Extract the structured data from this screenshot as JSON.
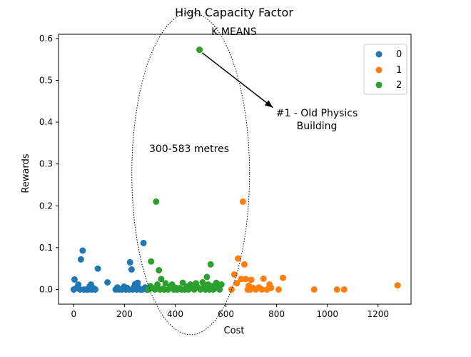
{
  "page": {
    "title": "High Capacity Factor",
    "subtitle": "K MEANS"
  },
  "chart_data": {
    "type": "scatter",
    "title": "High Capacity Factor",
    "subtitle": "K MEANS",
    "xlabel": "Cost",
    "ylabel": "Rewards",
    "xlim": [
      -60,
      1330
    ],
    "ylim": [
      -0.035,
      0.61
    ],
    "xticks": [
      0,
      200,
      400,
      600,
      800,
      1000,
      1200
    ],
    "yticks": [
      0.0,
      0.1,
      0.2,
      0.3,
      0.4,
      0.5,
      0.6
    ],
    "xtick_labels": [
      "0",
      "200",
      "400",
      "600",
      "800",
      "1000",
      "1200"
    ],
    "ytick_labels": [
      "0.0",
      "0.1",
      "0.2",
      "0.3",
      "0.4",
      "0.5",
      "0.6"
    ],
    "grid": false,
    "legend_position": "top-right",
    "series": [
      {
        "name": "0",
        "color": "#1f77b4",
        "points": [
          [
            0,
            0.0
          ],
          [
            3,
            0.024
          ],
          [
            10,
            0.003
          ],
          [
            18,
            0.012
          ],
          [
            25,
            0.0
          ],
          [
            28,
            0.072
          ],
          [
            35,
            0.093
          ],
          [
            40,
            0.0
          ],
          [
            50,
            0.0
          ],
          [
            58,
            0.0
          ],
          [
            62,
            0.007
          ],
          [
            68,
            0.012
          ],
          [
            72,
            0.0
          ],
          [
            78,
            0.003
          ],
          [
            85,
            0.0
          ],
          [
            95,
            0.05
          ],
          [
            133,
            0.017
          ],
          [
            165,
            0.0
          ],
          [
            172,
            0.005
          ],
          [
            178,
            0.0
          ],
          [
            190,
            0.0
          ],
          [
            198,
            0.007
          ],
          [
            205,
            0.0
          ],
          [
            210,
            0.004
          ],
          [
            218,
            0.0
          ],
          [
            222,
            0.065
          ],
          [
            228,
            0.048
          ],
          [
            232,
            0.0
          ],
          [
            238,
            0.006
          ],
          [
            242,
            0.013
          ],
          [
            248,
            0.0
          ],
          [
            252,
            0.016
          ],
          [
            258,
            0.003
          ],
          [
            262,
            0.0
          ],
          [
            270,
            0.0
          ],
          [
            275,
            0.111
          ],
          [
            282,
            0.005
          ],
          [
            288,
            0.0
          ]
        ]
      },
      {
        "name": "1",
        "color": "#ff7f0e",
        "points": [
          [
            622,
            0.0
          ],
          [
            633,
            0.036
          ],
          [
            643,
            0.015
          ],
          [
            648,
            0.074
          ],
          [
            660,
            0.025
          ],
          [
            667,
            0.21
          ],
          [
            673,
            0.06
          ],
          [
            678,
            0.025
          ],
          [
            686,
            0.0
          ],
          [
            690,
            0.009
          ],
          [
            696,
            0.0
          ],
          [
            700,
            0.023
          ],
          [
            706,
            0.004
          ],
          [
            718,
            0.0
          ],
          [
            730,
            0.005
          ],
          [
            742,
            0.0
          ],
          [
            748,
            0.026
          ],
          [
            762,
            0.0
          ],
          [
            772,
            0.012
          ],
          [
            778,
            0.004
          ],
          [
            808,
            0.0
          ],
          [
            825,
            0.028
          ],
          [
            948,
            0.0
          ],
          [
            1038,
            0.0
          ],
          [
            1066,
            0.0
          ],
          [
            1277,
            0.01
          ]
        ]
      },
      {
        "name": "2",
        "color": "#2ca02c",
        "points": [
          [
            295,
            0.0
          ],
          [
            302,
            0.008
          ],
          [
            305,
            0.067
          ],
          [
            312,
            0.003
          ],
          [
            320,
            0.0
          ],
          [
            325,
            0.21
          ],
          [
            330,
            0.012
          ],
          [
            336,
            0.046
          ],
          [
            340,
            0.0
          ],
          [
            345,
            0.025
          ],
          [
            352,
            0.002
          ],
          [
            357,
            0.0
          ],
          [
            362,
            0.015
          ],
          [
            372,
            0.0
          ],
          [
            380,
            0.006
          ],
          [
            388,
            0.012
          ],
          [
            395,
            0.0
          ],
          [
            402,
            0.004
          ],
          [
            408,
            0.0
          ],
          [
            416,
            0.003
          ],
          [
            425,
            0.0
          ],
          [
            430,
            0.016
          ],
          [
            438,
            0.0
          ],
          [
            445,
            0.007
          ],
          [
            452,
            0.0
          ],
          [
            460,
            0.012
          ],
          [
            468,
            0.003
          ],
          [
            475,
            0.0
          ],
          [
            482,
            0.015
          ],
          [
            490,
            0.005
          ],
          [
            496,
            0.573
          ],
          [
            500,
            0.0
          ],
          [
            508,
            0.017
          ],
          [
            515,
            0.007
          ],
          [
            520,
            0.0
          ],
          [
            525,
            0.03
          ],
          [
            530,
            0.012
          ],
          [
            535,
            0.0
          ],
          [
            540,
            0.06
          ],
          [
            545,
            0.008
          ],
          [
            550,
            0.0
          ],
          [
            555,
            0.002
          ],
          [
            562,
            0.016
          ],
          [
            568,
            0.004
          ],
          [
            575,
            0.0
          ],
          [
            582,
            0.012
          ]
        ]
      }
    ],
    "annotations": {
      "arrow_label_line1": "#1 - Old Physics",
      "arrow_label_line2": "Building",
      "ellipse_label": "300-583 metres",
      "arrow_from": [
        506,
        0.566
      ],
      "arrow_to": [
        785,
        0.435
      ],
      "ellipse_center": [
        461,
        0.277
      ],
      "ellipse_radius": [
        232,
        0.385
      ]
    }
  }
}
